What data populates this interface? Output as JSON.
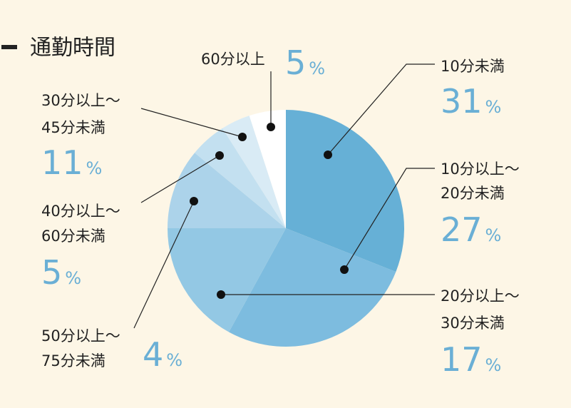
{
  "chart_data": {
    "type": "pie",
    "title": "通勤時間",
    "unit": "%",
    "categories": [
      [
        "10分未満"
      ],
      [
        "10分以上～",
        "20分未満"
      ],
      [
        "20分以上～",
        "30分未満"
      ],
      [
        "30分以上～",
        "45分未満"
      ],
      [
        "40分以上～",
        "60分未満"
      ],
      [
        "50分以上～",
        "75分未満"
      ],
      [
        "60分以上"
      ]
    ],
    "values": [
      31,
      27,
      17,
      11,
      5,
      4,
      5
    ],
    "colors": [
      "#66b0d6",
      "#7dbcdf",
      "#93c8e4",
      "#acd3ea",
      "#c3e0f0",
      "#d9ebf5",
      "#ffffff"
    ]
  }
}
